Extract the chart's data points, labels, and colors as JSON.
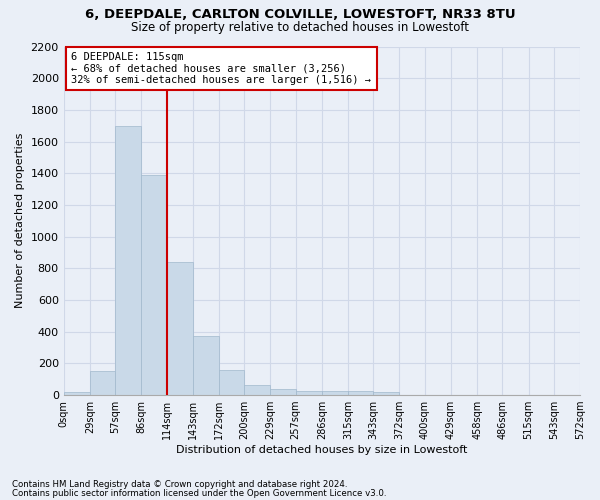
{
  "title": "6, DEEPDALE, CARLTON COLVILLE, LOWESTOFT, NR33 8TU",
  "subtitle": "Size of property relative to detached houses in Lowestoft",
  "xlabel": "Distribution of detached houses by size in Lowestoft",
  "ylabel": "Number of detached properties",
  "bar_edges": [
    0,
    29,
    57,
    86,
    114,
    143,
    172,
    200,
    229,
    257,
    286,
    315,
    343,
    372,
    400,
    429,
    458,
    486,
    515,
    543,
    572
  ],
  "bar_values": [
    20,
    155,
    1700,
    1390,
    840,
    375,
    160,
    65,
    38,
    28,
    28,
    28,
    18,
    0,
    0,
    0,
    0,
    0,
    0,
    0
  ],
  "bar_color": "#c9d9e8",
  "bar_edgecolor": "#a0b8cc",
  "grid_color": "#d0d8e8",
  "reference_line_x": 114,
  "reference_line_color": "#cc0000",
  "annotation_line1": "6 DEEPDALE: 115sqm",
  "annotation_line2": "← 68% of detached houses are smaller (3,256)",
  "annotation_line3": "32% of semi-detached houses are larger (1,516) →",
  "annotation_box_edgecolor": "#cc0000",
  "annotation_box_facecolor": "#ffffff",
  "ylim": [
    0,
    2200
  ],
  "yticks": [
    0,
    200,
    400,
    600,
    800,
    1000,
    1200,
    1400,
    1600,
    1800,
    2000,
    2200
  ],
  "footnote1": "Contains HM Land Registry data © Crown copyright and database right 2024.",
  "footnote2": "Contains public sector information licensed under the Open Government Licence v3.0.",
  "bg_color": "#eaeff7",
  "plot_bg_color": "#eaeff7"
}
